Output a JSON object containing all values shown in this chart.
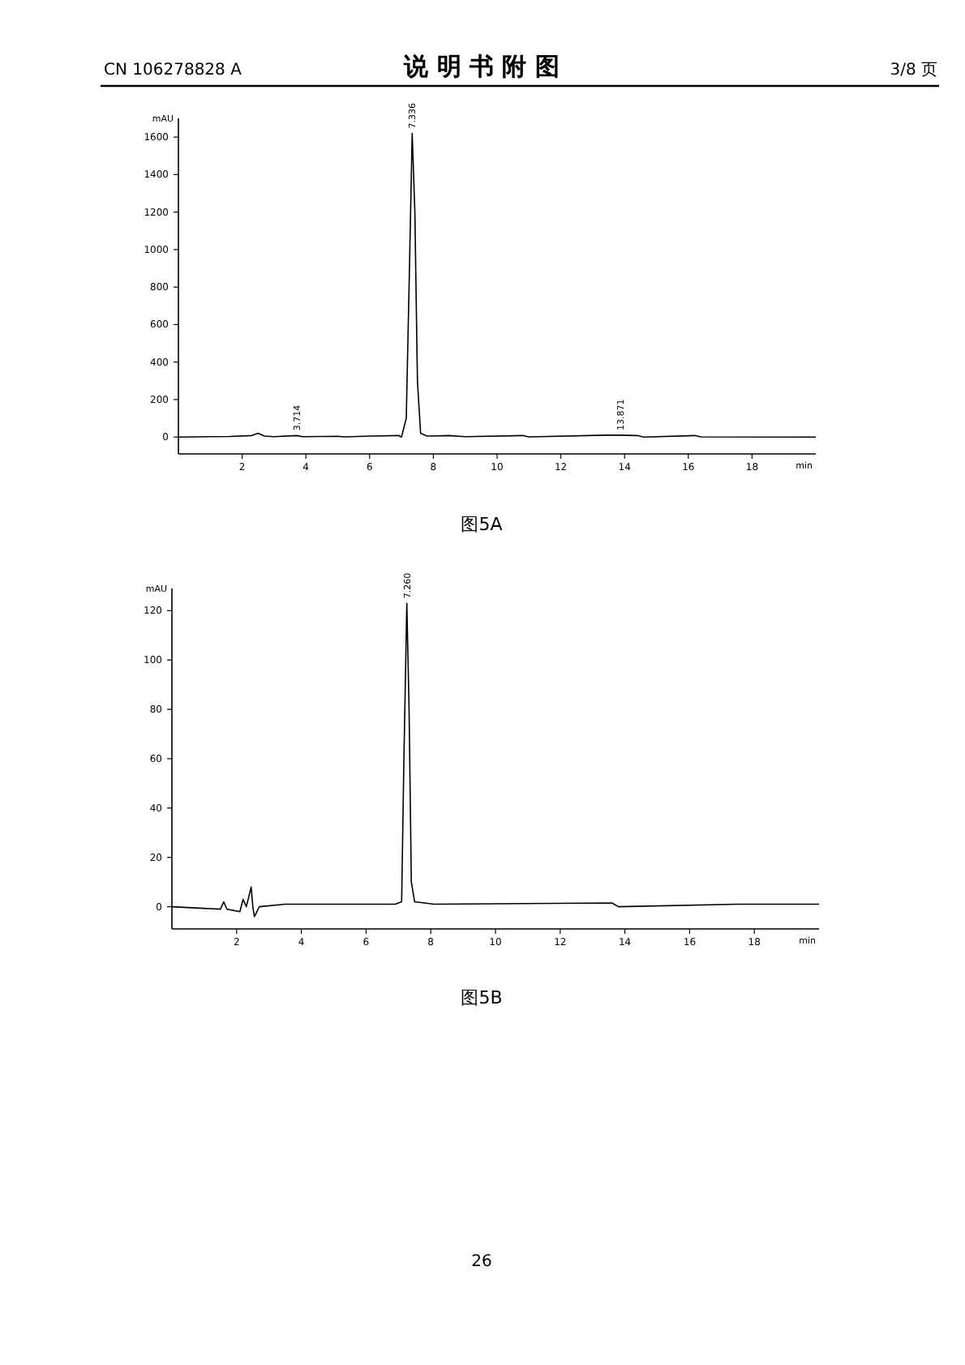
{
  "chart_data": [
    {
      "type": "line",
      "ylabel": "mAU",
      "xlabel": "min",
      "xlim": [
        0,
        20
      ],
      "ylim": [
        -90,
        1700
      ],
      "xticks": [
        2,
        4,
        6,
        8,
        10,
        12,
        14,
        16,
        18
      ],
      "yticks": [
        0,
        200,
        400,
        600,
        800,
        1000,
        1200,
        1400,
        1600
      ],
      "series": [
        {
          "color": "#000000",
          "x": [
            0,
            1.6,
            2.3,
            2.5,
            2.7,
            3.0,
            3.714,
            3.9,
            5.0,
            5.2,
            6.0,
            6.9,
            7.0,
            7.15,
            7.25,
            7.336,
            7.42,
            7.5,
            7.6,
            7.8,
            8.5,
            9.0,
            10.8,
            11.0,
            13.4,
            13.871,
            14.4,
            14.6,
            16.2,
            16.4,
            20
          ],
          "values": [
            0,
            3,
            8,
            20,
            5,
            2,
            8,
            2,
            4,
            1,
            5,
            8,
            0,
            100,
            900,
            1620,
            1200,
            300,
            20,
            5,
            8,
            2,
            8,
            1,
            10,
            10,
            8,
            0,
            8,
            1,
            0
          ]
        }
      ],
      "annotations": [
        "CN 106278828 A",
        "说 明 书 附 图",
        "3/8 页",
        "图5A",
        {
          "text": "7.336",
          "x": 7.336,
          "y": 1620
        },
        {
          "text": "3.714",
          "x": 3.714,
          "y": 8
        },
        {
          "text": "13.871",
          "x": 13.871,
          "y": 10
        }
      ]
    },
    {
      "type": "line",
      "ylabel": "mAU",
      "xlabel": "min",
      "xlim": [
        0,
        20
      ],
      "ylim": [
        -9,
        129
      ],
      "xticks": [
        2,
        4,
        6,
        8,
        10,
        12,
        14,
        16,
        18
      ],
      "yticks": [
        0,
        20,
        40,
        60,
        80,
        100,
        120
      ],
      "series": [
        {
          "color": "#000000",
          "x": [
            0,
            1.5,
            1.6,
            1.7,
            2.1,
            2.2,
            2.3,
            2.45,
            2.5,
            2.55,
            2.7,
            3.5,
            6.9,
            7.1,
            7.17,
            7.26,
            7.33,
            7.4,
            7.5,
            8.1,
            13.6,
            13.8,
            17.5,
            19,
            20
          ],
          "values": [
            0,
            -1,
            2,
            -1,
            -2,
            3,
            0,
            8,
            0,
            -4,
            0,
            1,
            1,
            2,
            60,
            123,
            80,
            10,
            2,
            1,
            1.5,
            0,
            1,
            1,
            1
          ]
        }
      ],
      "annotations": [
        "图5B",
        "26",
        {
          "text": "7.260",
          "x": 7.26,
          "y": 123
        }
      ]
    }
  ]
}
